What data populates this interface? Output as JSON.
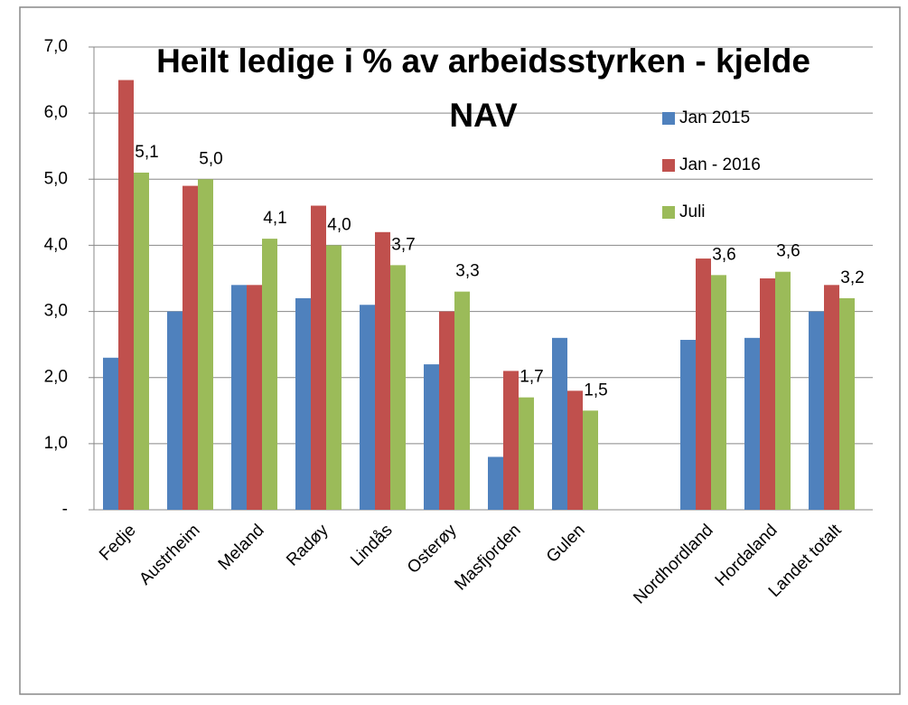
{
  "chart_data": {
    "type": "bar",
    "title": "Heilt ledige i % av arbeidsstyrken - kjelde NAV",
    "categories": [
      "Fedje",
      "Austrheim",
      "Meland",
      "Radøy",
      "Lindås",
      "Osterøy",
      "Masfjorden",
      "Gulen",
      null,
      "Nordhordland",
      "Hordaland",
      "Landet totalt"
    ],
    "series": [
      {
        "name": "Jan 2015",
        "color": "#4f81bd",
        "values": [
          2.3,
          3.0,
          3.4,
          3.2,
          3.1,
          2.2,
          0.8,
          2.6,
          null,
          2.57,
          2.6,
          3.0
        ]
      },
      {
        "name": "Jan - 2016",
        "color": "#c0504d",
        "values": [
          6.5,
          4.9,
          3.4,
          4.6,
          4.2,
          3.0,
          2.1,
          1.8,
          null,
          3.8,
          3.5,
          3.4
        ]
      },
      {
        "name": "Juli",
        "color": "#9bbb59",
        "values": [
          5.1,
          5.0,
          4.1,
          4.0,
          3.7,
          3.3,
          1.7,
          1.5,
          null,
          3.55,
          3.6,
          3.2
        ],
        "value_labels": [
          "5,1",
          "5,0",
          "4,1",
          "4,0",
          "3,7",
          "3,3",
          "1,7",
          "1,5",
          null,
          "3,6",
          "3,6",
          "3,2"
        ]
      }
    ],
    "ylim": [
      0,
      7
    ],
    "yticks": [
      {
        "value": 0,
        "label": "-"
      },
      {
        "value": 1,
        "label": "1,0"
      },
      {
        "value": 2,
        "label": "2,0"
      },
      {
        "value": 3,
        "label": "3,0"
      },
      {
        "value": 4,
        "label": "4,0"
      },
      {
        "value": 5,
        "label": "5,0"
      },
      {
        "value": 6,
        "label": "6,0"
      },
      {
        "value": 7,
        "label": "7,0"
      }
    ],
    "grid": true,
    "legend": "upper right"
  }
}
